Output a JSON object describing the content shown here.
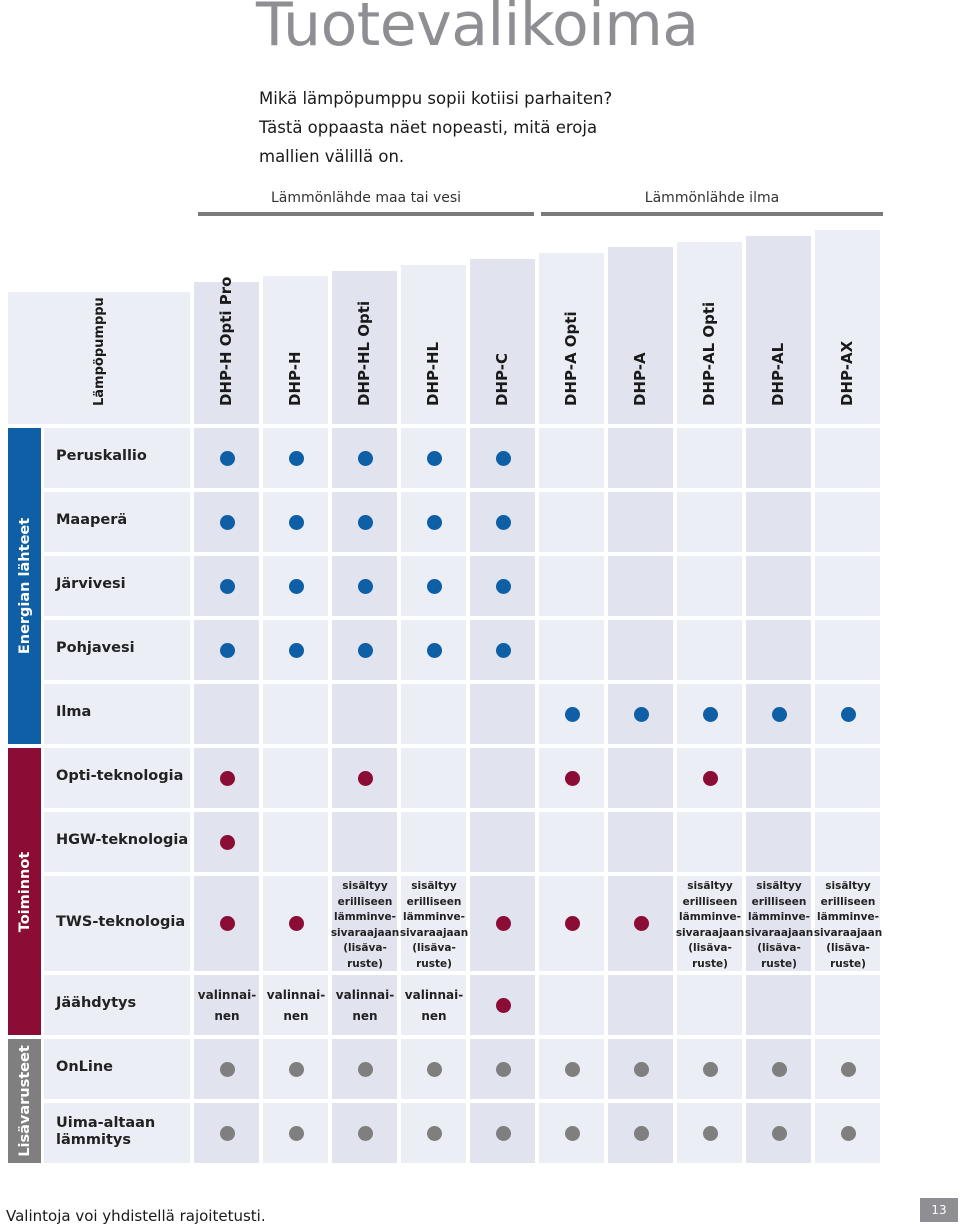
{
  "title": "Tuotevalikoima",
  "intro": [
    "Mikä lämpöpumppu sopii kotiisi parhaiten?",
    "Tästä oppaasta näet nopeasti, mitä eroja",
    "mallien välillä on."
  ],
  "source_groups": {
    "ground": "Lämmönlähde maa tai vesi",
    "air": "Lämmönlähde ilma"
  },
  "table": {
    "corner_label": "Lämpöpumppu",
    "columns": [
      "DHP-H Opti Pro",
      "DHP-H",
      "DHP-HL Opti",
      "DHP-HL",
      "DHP-C",
      "DHP-A Opti",
      "DHP-A",
      "DHP-AL Opti",
      "DHP-AL",
      "DHP-AX"
    ],
    "categories": {
      "energy": "Energian lähteet",
      "functions": "Toiminnot",
      "accessories": "Lisävarusteet"
    },
    "rows": [
      {
        "label": "Peruskallio",
        "cells": [
          "b",
          "b",
          "b",
          "b",
          "b",
          "",
          "",
          "",
          "",
          ""
        ]
      },
      {
        "label": "Maaperä",
        "cells": [
          "b",
          "b",
          "b",
          "b",
          "b",
          "",
          "",
          "",
          "",
          ""
        ]
      },
      {
        "label": "Järvivesi",
        "cells": [
          "b",
          "b",
          "b",
          "b",
          "b",
          "",
          "",
          "",
          "",
          ""
        ]
      },
      {
        "label": "Pohjavesi",
        "cells": [
          "b",
          "b",
          "b",
          "b",
          "b",
          "",
          "",
          "",
          "",
          ""
        ]
      },
      {
        "label": "Ilma",
        "cells": [
          "",
          "",
          "",
          "",
          "",
          "b",
          "b",
          "b",
          "b",
          "b"
        ]
      },
      {
        "label": "Opti-teknologia",
        "cells": [
          "r",
          "",
          "r",
          "",
          "",
          "r",
          "",
          "r",
          "",
          ""
        ]
      },
      {
        "label": "HGW-teknologia",
        "cells": [
          "r",
          "",
          "",
          "",
          "",
          "",
          "",
          "",
          "",
          ""
        ]
      },
      {
        "label": "TWS-teknologia",
        "cells": [
          "r",
          "r",
          "n",
          "n",
          "r",
          "r",
          "r",
          "n",
          "n",
          "n"
        ]
      },
      {
        "label": "Jäähdytys",
        "cells": [
          "o",
          "o",
          "o",
          "o",
          "r",
          "",
          "",
          "",
          "",
          ""
        ]
      },
      {
        "label": "OnLine",
        "cells": [
          "g",
          "g",
          "g",
          "g",
          "g",
          "g",
          "g",
          "g",
          "g",
          "g"
        ]
      },
      {
        "label": "Uima-altaan lämmitys",
        "cells": [
          "g",
          "g",
          "g",
          "g",
          "g",
          "g",
          "g",
          "g",
          "g",
          "g"
        ]
      }
    ],
    "note_text": [
      "sisältyy",
      "erilliseen",
      "lämminve-",
      "sivaraajaan",
      "(lisäva-",
      "ruste)"
    ],
    "optional_text": [
      "valinnai-",
      "nen"
    ]
  },
  "footer": "Valintoja voi yhdistellä rajoitetusti.",
  "page_number": "13",
  "colors": {
    "blue": "#0e5fa6",
    "red": "#8b0c35",
    "gray": "#7f7f7f",
    "row_a": "#e1e4ef",
    "row_b": "#eceef5"
  }
}
